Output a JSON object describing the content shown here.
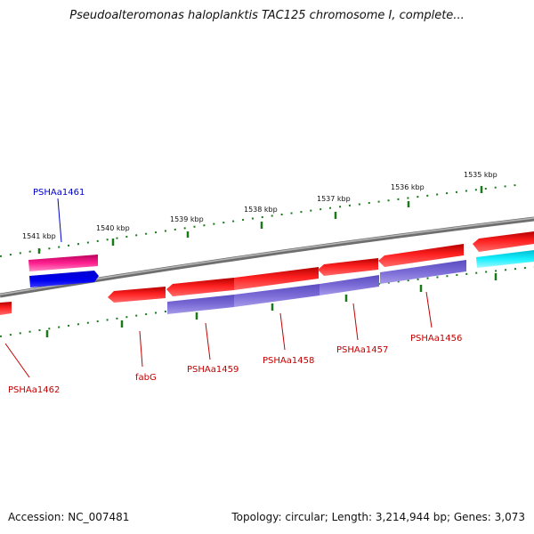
{
  "title": "Pseudoalteromonas haloplanktis TAC125 chromosome I, complete...",
  "footer": {
    "accession": "Accession: NC_007481",
    "topology": "Topology: circular; Length: 3,214,944 bp; Genes: 3,073"
  },
  "ticks": [
    "1541 kbp",
    "1540 kbp",
    "1539 kbp",
    "1538 kbp",
    "1537 kbp",
    "1536 kbp",
    "1535 kbp"
  ],
  "gene_labels": {
    "PSHAa1461": "PSHAa1461",
    "PSHAa1462": "PSHAa1462",
    "fabG": "fabG",
    "PSHAa1459": "PSHAa1459",
    "PSHAa1458": "PSHAa1458",
    "PSHAa1457": "PSHAa1457",
    "PSHAa1456": "PSHAa1456"
  },
  "colors": {
    "forward": "#ff1a1a",
    "reverse_blue": "#0000ee",
    "reverse_purple": "#7a6bd6",
    "highlight_pink": "#ff1f8f",
    "cyan": "#17f0ff",
    "tick_green": "#1a7a1a",
    "backbone": "#808080",
    "label_red": "#c40000",
    "label_blue": "#0000cc"
  }
}
